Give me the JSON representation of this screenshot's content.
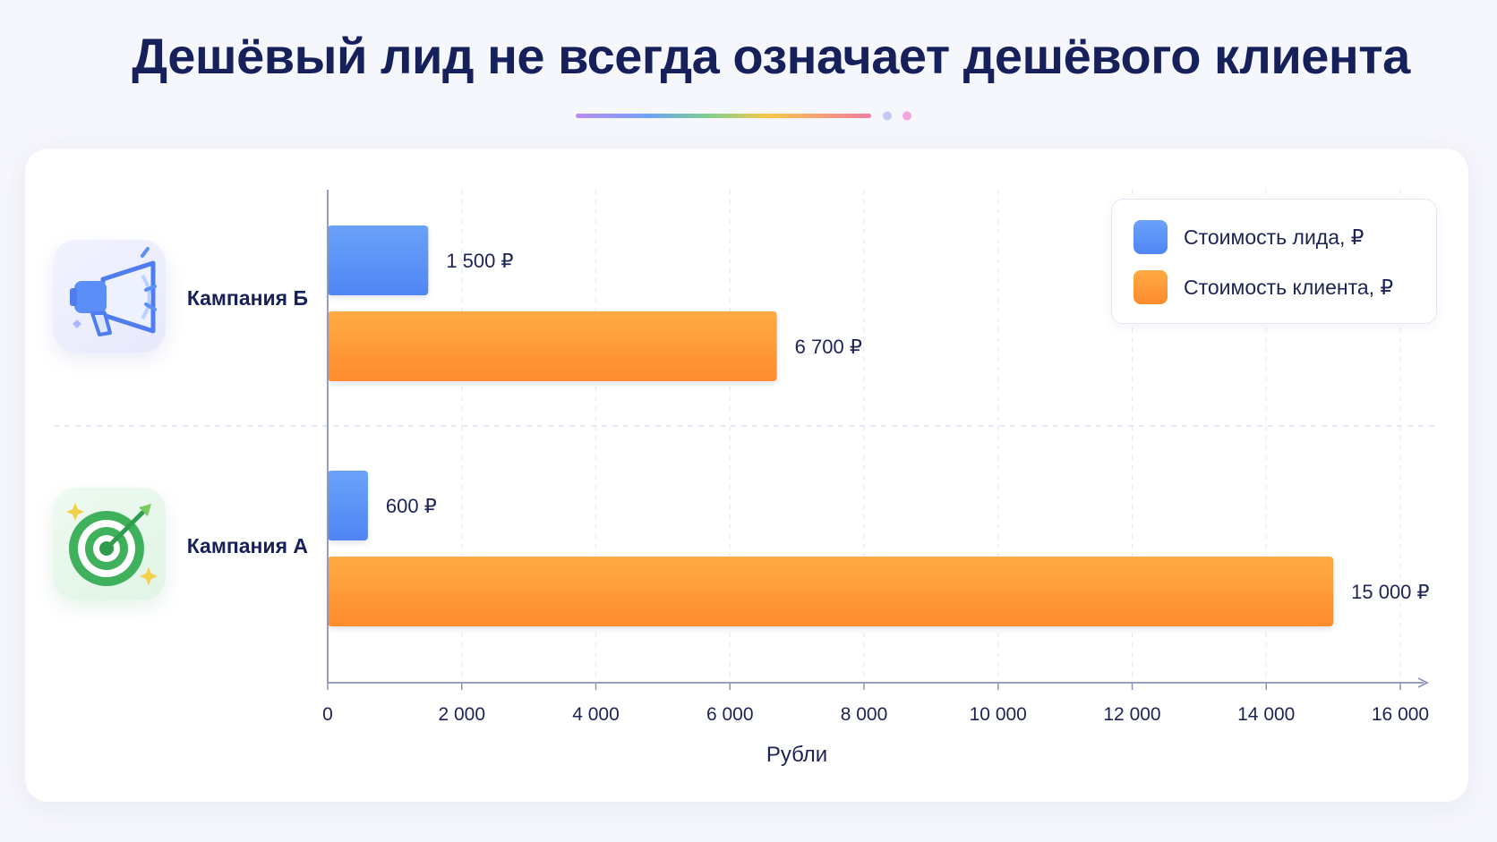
{
  "page": {
    "title": "Дешёвый лид не всегда означает дешёвого клиента"
  },
  "chart_data": {
    "type": "bar",
    "orientation": "horizontal",
    "categories": [
      "Кампания Б",
      "Кампания А"
    ],
    "series": [
      {
        "name": "Стоимость лида, ₽",
        "values": [
          1500,
          600
        ],
        "color": "#5b93f7",
        "labels": [
          "1 500 ₽",
          "600 ₽"
        ]
      },
      {
        "name": "Стоимость клиента, ₽",
        "values": [
          6700,
          15000
        ],
        "color": "#ff9a33",
        "labels": [
          "6 700 ₽",
          "15 000 ₽"
        ]
      }
    ],
    "xlabel": "Рубли",
    "xlim": [
      0,
      16000
    ],
    "xticks": [
      0,
      2000,
      4000,
      6000,
      8000,
      10000,
      12000,
      14000,
      16000
    ],
    "xtick_labels": [
      "0",
      "2 000",
      "4 000",
      "6 000",
      "8 000",
      "10 000",
      "12 000",
      "14 000",
      "16 000"
    ],
    "grid": true,
    "legend_position": "top-right"
  },
  "icons": {
    "campaign_b": "megaphone-icon",
    "campaign_a": "target-icon"
  },
  "colors": {
    "title": "#16205a",
    "lead": "#5b93f7",
    "client": "#ff9a33"
  }
}
